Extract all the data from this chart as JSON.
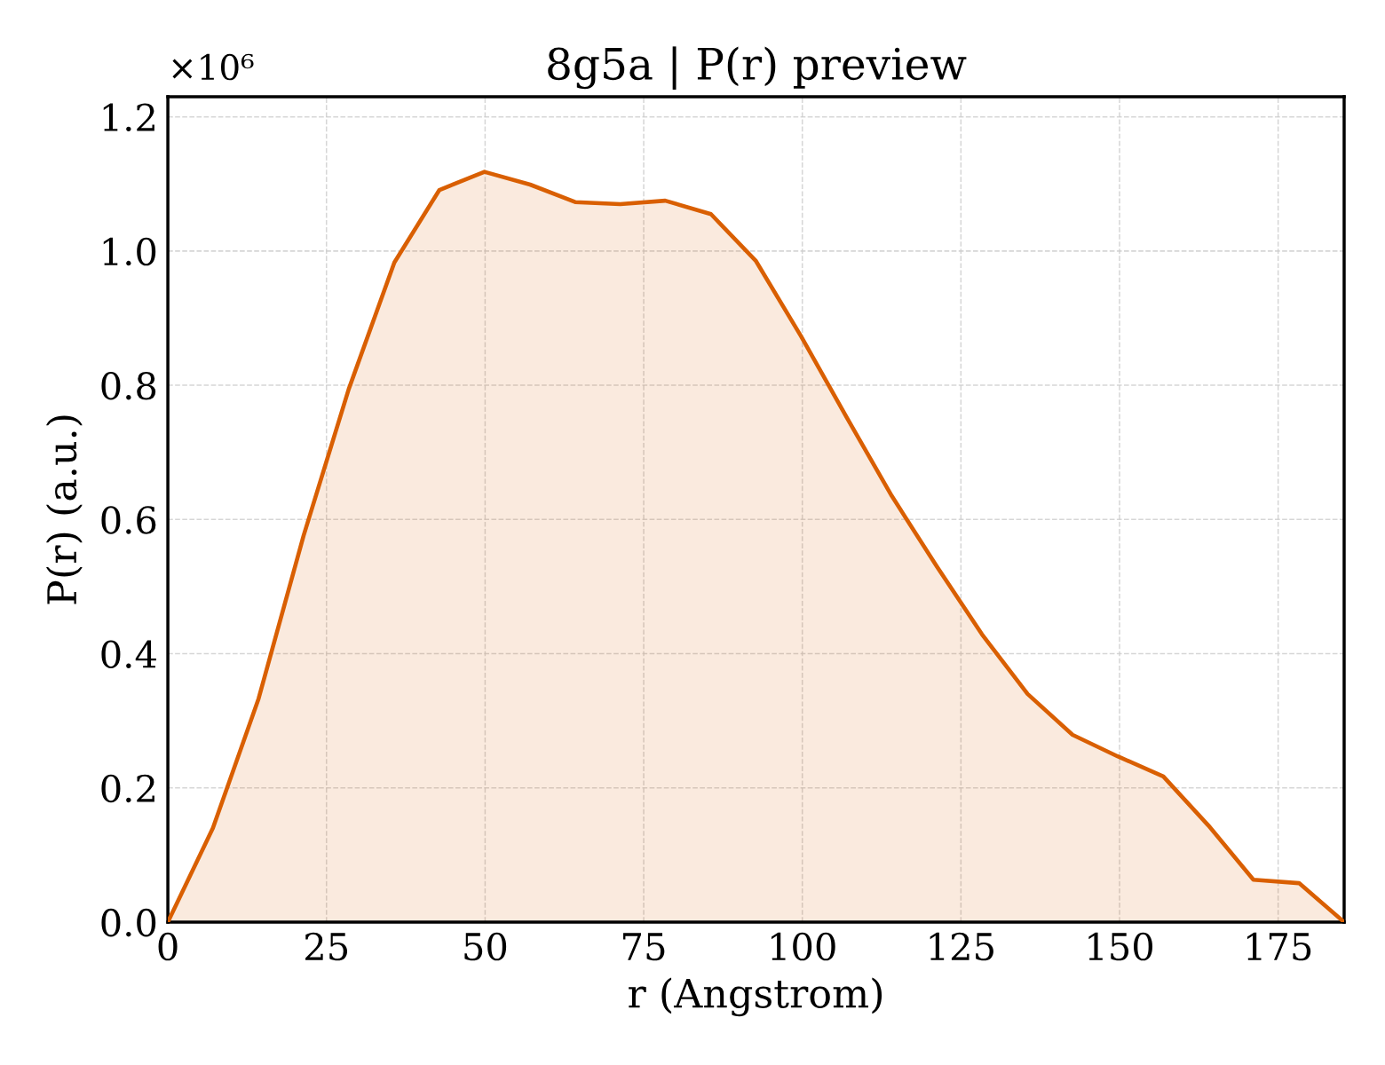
{
  "chart_data": {
    "type": "area",
    "title": "8g5a | P(r) preview",
    "xlabel": "r (Angstrom)",
    "ylabel": "P(r) (a.u.)",
    "annotations": [
      "×10⁶"
    ],
    "x": [
      0,
      7.1,
      14.3,
      21.4,
      28.5,
      35.7,
      42.8,
      49.9,
      57.1,
      64.2,
      71.3,
      78.4,
      85.6,
      92.7,
      99.8,
      107.0,
      114.1,
      121.2,
      128.3,
      135.5,
      142.6,
      149.7,
      156.9,
      164.0,
      171.1,
      178.3,
      185.4
    ],
    "series": [
      {
        "color": "#d95f02",
        "values": [
          0,
          0.14,
          0.333,
          0.576,
          0.794,
          0.983,
          1.091,
          1.118,
          1.099,
          1.073,
          1.07,
          1.075,
          1.055,
          0.985,
          0.873,
          0.752,
          0.635,
          0.53,
          0.429,
          0.34,
          0.279,
          0.247,
          0.217,
          0.144,
          0.063,
          0.058,
          0
        ]
      }
    ],
    "xlim": [
      0,
      185.4
    ],
    "ylim": [
      0,
      1.23
    ],
    "xticks": [
      0,
      25,
      50,
      75,
      100,
      125,
      150,
      175
    ],
    "yticks": [
      {
        "value": 0,
        "label": "0.0"
      },
      0.2,
      0.4,
      0.6,
      0.8,
      {
        "value": 1,
        "label": "1.0"
      },
      1.2
    ],
    "grid": true,
    "marker": "none",
    "line_style": "solid"
  }
}
